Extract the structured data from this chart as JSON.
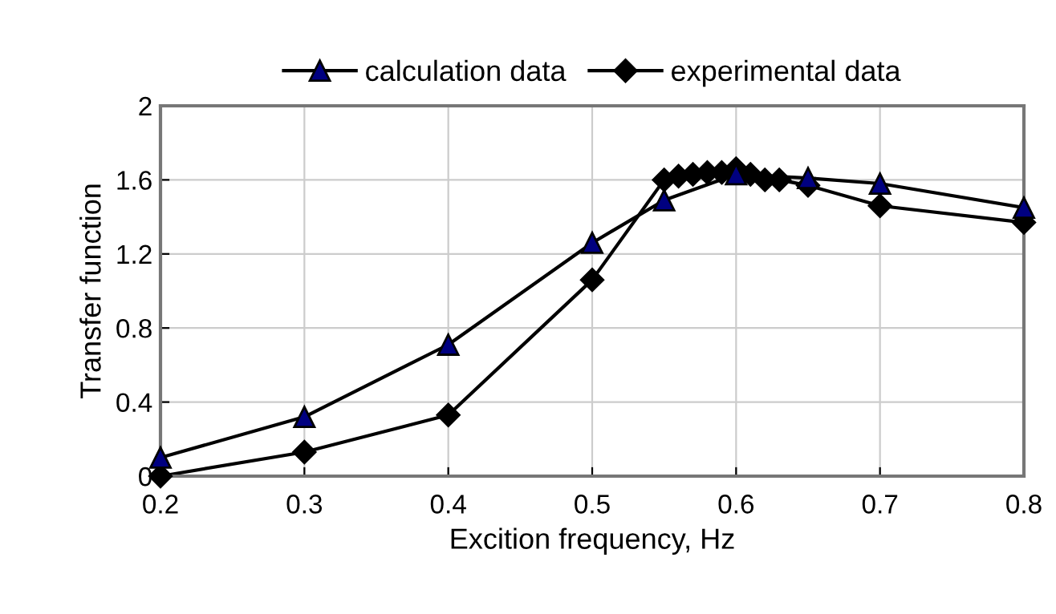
{
  "chart_data": {
    "type": "line",
    "xlabel": "Excition frequency, Hz",
    "ylabel": "Transfer function",
    "xlim": [
      0.2,
      0.8
    ],
    "xticks": [
      0.2,
      0.3,
      0.4,
      0.5,
      0.6,
      0.7,
      0.8
    ],
    "ylim": [
      0,
      2
    ],
    "yticks": [
      0,
      0.4,
      0.8,
      1.2,
      1.6,
      2
    ],
    "grid": true,
    "legend": "top",
    "line_style": "solid",
    "series": [
      {
        "name": "calculation data",
        "color": "#000080",
        "marker": "triangle",
        "x": [
          0.2,
          0.3,
          0.4,
          0.5,
          0.55,
          0.6,
          0.65,
          0.7,
          0.8
        ],
        "values": [
          0.1,
          0.32,
          0.71,
          1.26,
          1.49,
          1.63,
          1.61,
          1.58,
          1.45
        ]
      },
      {
        "name": "experimental data",
        "color": "#000000",
        "marker": "diamond",
        "x": [
          0.2,
          0.3,
          0.4,
          0.5,
          0.55,
          0.56,
          0.57,
          0.58,
          0.59,
          0.6,
          0.61,
          0.62,
          0.63,
          0.65,
          0.7,
          0.8
        ],
        "values": [
          0.0,
          0.13,
          0.33,
          1.06,
          1.6,
          1.62,
          1.63,
          1.64,
          1.64,
          1.66,
          1.63,
          1.6,
          1.6,
          1.57,
          1.46,
          1.37
        ]
      }
    ]
  }
}
